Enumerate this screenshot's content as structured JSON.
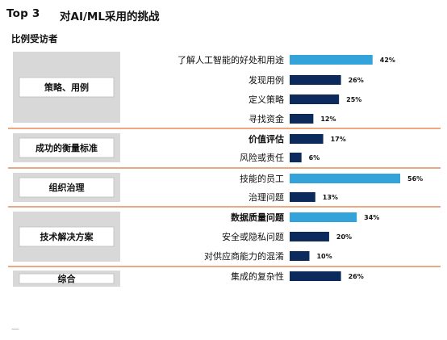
{
  "header": {
    "tag": "Top 3",
    "title": "对AI/ML采用的挑战"
  },
  "subtitle": "比例受访者",
  "footer_mark": "—",
  "colors": {
    "highlight_bar": "#34a3d9",
    "normal_bar": "#0d2a5c",
    "separator": "#e88b55",
    "group_box_outer": "#d8d8d8",
    "group_box_inner": "#ffffff"
  },
  "chart_data": {
    "type": "bar",
    "orientation": "horizontal",
    "unit": "%",
    "title": "对AI/ML采用的挑战",
    "subtitle": "比例受访者",
    "xlim": [
      0,
      60
    ],
    "grid": false,
    "groups": [
      {
        "name": "策略、用例",
        "items": [
          {
            "label": "了解人工智能的好处和用途",
            "value": 42,
            "value_label": "42%",
            "highlight": true,
            "bold": false
          },
          {
            "label": "发现用例",
            "value": 26,
            "value_label": "26%",
            "highlight": false,
            "bold": false
          },
          {
            "label": "定义策略",
            "value": 25,
            "value_label": "25%",
            "highlight": false,
            "bold": false
          },
          {
            "label": "寻找资金",
            "value": 12,
            "value_label": "12%",
            "highlight": false,
            "bold": false
          }
        ]
      },
      {
        "name": "成功的衡量标准",
        "items": [
          {
            "label": "价值评估",
            "value": 17,
            "value_label": "17%",
            "highlight": false,
            "bold": true
          },
          {
            "label": "风险或责任",
            "value": 6,
            "value_label": "6%",
            "highlight": false,
            "bold": false
          }
        ]
      },
      {
        "name": "组织治理",
        "items": [
          {
            "label": "技能的员工",
            "value": 56,
            "value_label": "56%",
            "highlight": true,
            "bold": false
          },
          {
            "label": "治理问题",
            "value": 13,
            "value_label": "13%",
            "highlight": false,
            "bold": false
          }
        ]
      },
      {
        "name": "技术解决方案",
        "items": [
          {
            "label": "数据质量问题",
            "value": 34,
            "value_label": "34%",
            "highlight": true,
            "bold": true
          },
          {
            "label": "安全或隐私问题",
            "value": 20,
            "value_label": "20%",
            "highlight": false,
            "bold": false
          },
          {
            "label": "对供应商能力的混淆",
            "value": 10,
            "value_label": "10%",
            "highlight": false,
            "bold": false
          }
        ]
      },
      {
        "name": "综合",
        "items": [
          {
            "label": "集成的复杂性",
            "value": 26,
            "value_label": "26%",
            "highlight": false,
            "bold": false
          }
        ]
      }
    ]
  }
}
